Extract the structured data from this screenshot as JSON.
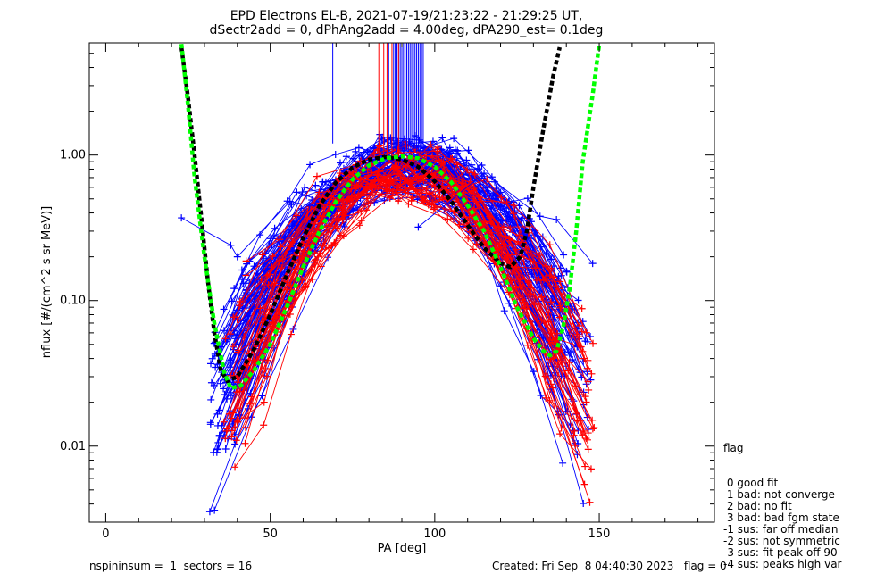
{
  "chart_data": {
    "type": "line",
    "title": "EPD Electrons EL-B, 2021-07-19/21:23:22 - 21:29:25 UT,",
    "subtitle": "dSectr2add = 0, dPhAng2add = 4.00deg, dPA290_est=   0.1deg",
    "xlabel": "PA [deg]",
    "ylabel": "nflux [#/(cm^2 s sr MeV)]",
    "xlim": [
      -5,
      185
    ],
    "ylim": [
      0.003,
      5.9
    ],
    "yscale": "log",
    "x_ticks": [
      0,
      50,
      100,
      150
    ],
    "y_ticks": [
      {
        "value": 0.01,
        "label": "0.01"
      },
      {
        "value": 0.1,
        "label": "0.10"
      },
      {
        "value": 1.0,
        "label": "1.00"
      }
    ],
    "grid": false,
    "colors": {
      "blue_traces": "#0000ff",
      "red_traces": "#ff0000",
      "black_fit": "#000000",
      "green_fit": "#00ff00"
    },
    "bundles": [
      {
        "color": "#0000ff",
        "count": 90,
        "peak": 0.9,
        "x_lo": [
          32,
          42
        ],
        "x_hi": [
          134,
          147
        ]
      },
      {
        "color": "#ff0000",
        "count": 42,
        "peak": 0.8,
        "x_lo": [
          36,
          44
        ],
        "x_hi": [
          138,
          148
        ]
      }
    ],
    "fit_curves": [
      {
        "color": "#000000",
        "x": [
          23,
          25,
          27,
          29,
          31,
          33,
          35,
          37,
          40,
          45,
          50,
          55,
          60,
          65,
          70,
          75,
          80,
          85,
          90,
          95,
          100,
          105,
          110,
          115,
          120,
          123,
          126,
          128,
          130,
          133,
          136,
          138
        ],
        "y": [
          5.5,
          2.5,
          1.0,
          0.38,
          0.14,
          0.06,
          0.033,
          0.028,
          0.03,
          0.046,
          0.08,
          0.15,
          0.27,
          0.45,
          0.65,
          0.82,
          0.93,
          0.97,
          0.93,
          0.83,
          0.66,
          0.48,
          0.33,
          0.23,
          0.18,
          0.17,
          0.2,
          0.3,
          0.6,
          1.5,
          3.5,
          5.5
        ]
      },
      {
        "color": "#00ff00",
        "x": [
          23,
          25,
          27,
          30,
          33,
          36,
          38,
          41,
          45,
          50,
          55,
          60,
          65,
          70,
          75,
          80,
          85,
          90,
          95,
          100,
          105,
          110,
          115,
          120,
          125,
          130,
          133,
          135,
          137,
          139,
          141,
          143,
          145,
          148,
          150
        ],
        "y": [
          5.8,
          2.2,
          0.7,
          0.2,
          0.07,
          0.032,
          0.025,
          0.026,
          0.033,
          0.05,
          0.09,
          0.17,
          0.3,
          0.48,
          0.68,
          0.85,
          0.95,
          0.98,
          0.95,
          0.83,
          0.65,
          0.45,
          0.3,
          0.17,
          0.09,
          0.055,
          0.045,
          0.042,
          0.045,
          0.065,
          0.12,
          0.3,
          0.9,
          2.6,
          5.8
        ]
      }
    ],
    "spikes": {
      "blue": {
        "x": [
          69,
          86,
          87.5,
          88,
          88.5,
          89,
          89.5,
          90,
          90.5,
          91,
          91.5,
          92,
          92.5,
          93,
          93.5,
          94,
          94.5,
          95,
          95.5,
          96,
          96.5
        ],
        "y_bottom": [
          1.2,
          1.05,
          1.08,
          1.1,
          1.05,
          1.1,
          1.08,
          1.06,
          1.1,
          1.05,
          1.08,
          1.06,
          1.1,
          1.05,
          1.08,
          1.1,
          1.05,
          1.08,
          1.06,
          1.1,
          1.05
        ]
      },
      "red": {
        "x": [
          83,
          84.5,
          85.5,
          87,
          89
        ],
        "y_bottom": [
          0.95,
          1.0,
          0.97,
          0.95,
          1.0
        ]
      }
    },
    "outliers": [
      {
        "color": "#0000ff",
        "x": [
          23,
          38,
          40,
          56,
          62
        ],
        "y": [
          0.37,
          0.24,
          0.2,
          0.48,
          0.45
        ]
      },
      {
        "color": "#0000ff",
        "x": [
          95,
          115,
          132,
          137,
          148
        ],
        "y": [
          0.32,
          0.75,
          0.38,
          0.36,
          0.18
        ]
      }
    ]
  },
  "legend": {
    "title": "flag",
    "items": [
      " 0 good fit",
      " 1 bad: not converge",
      " 2 bad: no fit",
      " 3 bad: bad fgm state",
      "-1 sus: far off median",
      "-2 sus: not symmetric",
      "-3 sus: fit peak off 90",
      "-4 sus: peaks high var"
    ]
  },
  "footer": {
    "left": "nspininsum =  1  sectors = 16",
    "right": "Created: Fri Sep  8 04:40:30 2023   flag = 0"
  }
}
